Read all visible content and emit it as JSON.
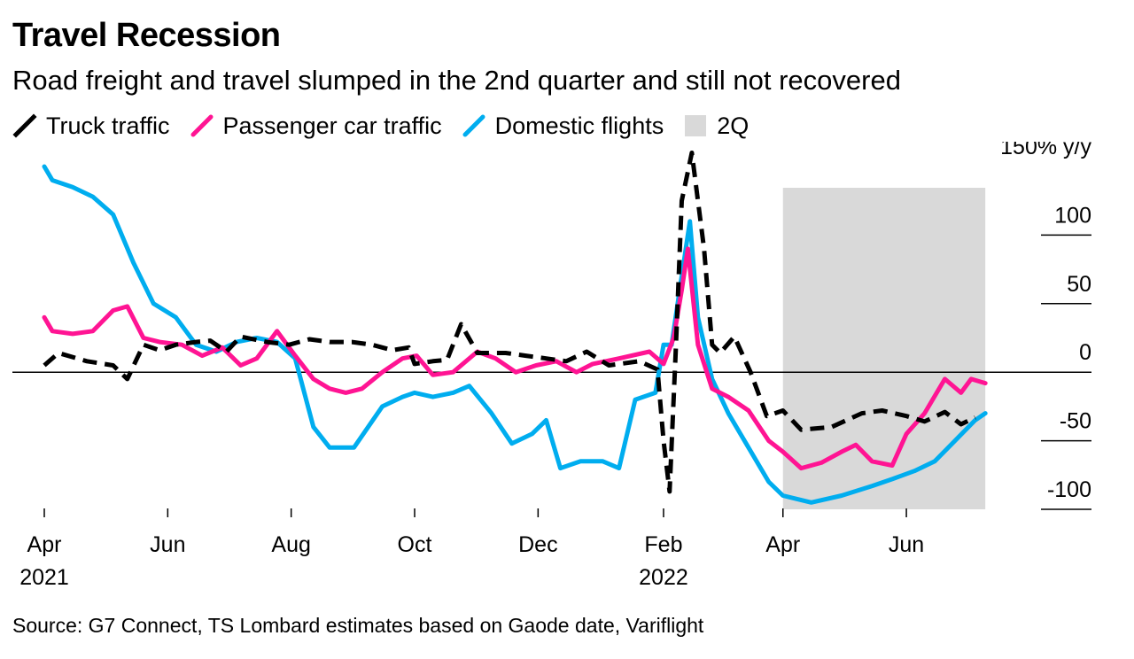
{
  "title": "Travel Recession",
  "subtitle": "Road freight and travel slumped in the 2nd quarter and still not recovered",
  "source": "Source: G7 Connect, TS Lombard estimates based on Gaode date, Variflight",
  "colors": {
    "truck": "#000000",
    "passenger": "#ff1493",
    "flights": "#00adef",
    "shade": "#d9d9d9"
  },
  "legend": [
    {
      "key": "truck",
      "label": "Truck traffic",
      "style": "dashed"
    },
    {
      "key": "passenger",
      "label": "Passenger car traffic",
      "style": "solid"
    },
    {
      "key": "flights",
      "label": "Domestic flights",
      "style": "solid"
    },
    {
      "key": "shade",
      "label": "2Q",
      "style": "box"
    }
  ],
  "chart_data": {
    "type": "line",
    "y_unit_label": "150% y/y",
    "yticks": [
      {
        "value": 150,
        "label": "150% y/y"
      },
      {
        "value": 100,
        "label": "100"
      },
      {
        "value": 50,
        "label": "50"
      },
      {
        "value": 0,
        "label": "0"
      },
      {
        "value": -50,
        "label": "-50"
      },
      {
        "value": -100,
        "label": "-100"
      }
    ],
    "ylim": [
      -100,
      150
    ],
    "xlim": [
      "2021-04-01",
      "2022-07-20"
    ],
    "xticks": [
      {
        "date": "2021-04-01",
        "label": "Apr",
        "year": "2021"
      },
      {
        "date": "2021-06-01",
        "label": "Jun",
        "year": ""
      },
      {
        "date": "2021-08-01",
        "label": "Aug",
        "year": ""
      },
      {
        "date": "2021-10-01",
        "label": "Oct",
        "year": ""
      },
      {
        "date": "2021-12-01",
        "label": "Dec",
        "year": ""
      },
      {
        "date": "2022-02-01",
        "label": "Feb",
        "year": "2022"
      },
      {
        "date": "2022-04-01",
        "label": "Apr",
        "year": ""
      },
      {
        "date": "2022-06-01",
        "label": "Jun",
        "year": ""
      }
    ],
    "shaded_region": {
      "label": "2Q",
      "start": "2022-04-01",
      "end": "2022-07-10"
    },
    "series": [
      {
        "name": "Truck traffic",
        "key": "truck",
        "style": "dashed",
        "points": [
          [
            "2021-04-01",
            5
          ],
          [
            "2021-04-08",
            14
          ],
          [
            "2021-04-22",
            8
          ],
          [
            "2021-05-05",
            5
          ],
          [
            "2021-05-12",
            -5
          ],
          [
            "2021-05-20",
            20
          ],
          [
            "2021-05-28",
            16
          ],
          [
            "2021-06-05",
            20
          ],
          [
            "2021-06-15",
            22
          ],
          [
            "2021-06-22",
            23
          ],
          [
            "2021-06-30",
            15
          ],
          [
            "2021-07-07",
            26
          ],
          [
            "2021-07-20",
            22
          ],
          [
            "2021-07-31",
            20
          ],
          [
            "2021-08-10",
            24
          ],
          [
            "2021-08-20",
            22
          ],
          [
            "2021-08-31",
            22
          ],
          [
            "2021-09-10",
            20
          ],
          [
            "2021-09-20",
            16
          ],
          [
            "2021-09-28",
            18
          ],
          [
            "2021-10-01",
            6
          ],
          [
            "2021-10-10",
            8
          ],
          [
            "2021-10-17",
            9
          ],
          [
            "2021-10-24",
            35
          ],
          [
            "2021-11-01",
            14
          ],
          [
            "2021-11-15",
            14
          ],
          [
            "2021-11-25",
            12
          ],
          [
            "2021-12-05",
            10
          ],
          [
            "2021-12-15",
            8
          ],
          [
            "2021-12-25",
            15
          ],
          [
            "2022-01-05",
            5
          ],
          [
            "2022-01-20",
            8
          ],
          [
            "2022-01-29",
            2
          ],
          [
            "2022-02-01",
            -50
          ],
          [
            "2022-02-04",
            -87
          ],
          [
            "2022-02-07",
            15
          ],
          [
            "2022-02-10",
            125
          ],
          [
            "2022-02-15",
            160
          ],
          [
            "2022-02-21",
            90
          ],
          [
            "2022-02-25",
            20
          ],
          [
            "2022-03-01",
            14
          ],
          [
            "2022-03-08",
            26
          ],
          [
            "2022-03-16",
            0
          ],
          [
            "2022-03-24",
            -32
          ],
          [
            "2022-04-01",
            -28
          ],
          [
            "2022-04-10",
            -42
          ],
          [
            "2022-04-25",
            -40
          ],
          [
            "2022-05-10",
            -30
          ],
          [
            "2022-05-20",
            -28
          ],
          [
            "2022-06-01",
            -32
          ],
          [
            "2022-06-10",
            -36
          ],
          [
            "2022-06-20",
            -29
          ],
          [
            "2022-06-28",
            -38
          ],
          [
            "2022-07-05",
            -33
          ]
        ]
      },
      {
        "name": "Passenger car traffic",
        "key": "passenger",
        "style": "solid",
        "points": [
          [
            "2021-04-01",
            40
          ],
          [
            "2021-04-05",
            30
          ],
          [
            "2021-04-15",
            28
          ],
          [
            "2021-04-25",
            30
          ],
          [
            "2021-05-05",
            45
          ],
          [
            "2021-05-12",
            48
          ],
          [
            "2021-05-20",
            25
          ],
          [
            "2021-05-28",
            22
          ],
          [
            "2021-06-08",
            20
          ],
          [
            "2021-06-18",
            12
          ],
          [
            "2021-06-28",
            18
          ],
          [
            "2021-07-07",
            5
          ],
          [
            "2021-07-15",
            10
          ],
          [
            "2021-07-25",
            30
          ],
          [
            "2021-08-03",
            12
          ],
          [
            "2021-08-12",
            -5
          ],
          [
            "2021-08-20",
            -12
          ],
          [
            "2021-08-28",
            -15
          ],
          [
            "2021-09-05",
            -12
          ],
          [
            "2021-09-15",
            0
          ],
          [
            "2021-09-25",
            10
          ],
          [
            "2021-10-02",
            12
          ],
          [
            "2021-10-10",
            -2
          ],
          [
            "2021-10-20",
            0
          ],
          [
            "2021-11-01",
            15
          ],
          [
            "2021-11-10",
            10
          ],
          [
            "2021-11-20",
            0
          ],
          [
            "2021-11-30",
            5
          ],
          [
            "2021-12-10",
            8
          ],
          [
            "2021-12-20",
            0
          ],
          [
            "2021-12-28",
            6
          ],
          [
            "2022-01-10",
            10
          ],
          [
            "2022-01-25",
            15
          ],
          [
            "2022-02-01",
            6
          ],
          [
            "2022-02-06",
            25
          ],
          [
            "2022-02-10",
            60
          ],
          [
            "2022-02-13",
            90
          ],
          [
            "2022-02-18",
            20
          ],
          [
            "2022-02-25",
            -12
          ],
          [
            "2022-03-05",
            -18
          ],
          [
            "2022-03-15",
            -28
          ],
          [
            "2022-03-25",
            -50
          ],
          [
            "2022-04-01",
            -58
          ],
          [
            "2022-04-10",
            -70
          ],
          [
            "2022-04-20",
            -66
          ],
          [
            "2022-04-30",
            -58
          ],
          [
            "2022-05-07",
            -53
          ],
          [
            "2022-05-15",
            -65
          ],
          [
            "2022-05-25",
            -68
          ],
          [
            "2022-06-01",
            -45
          ],
          [
            "2022-06-10",
            -30
          ],
          [
            "2022-06-20",
            -5
          ],
          [
            "2022-06-28",
            -15
          ],
          [
            "2022-07-03",
            -5
          ],
          [
            "2022-07-10",
            -8
          ]
        ]
      },
      {
        "name": "Domestic flights",
        "key": "flights",
        "style": "solid",
        "points": [
          [
            "2021-04-01",
            150
          ],
          [
            "2021-04-05",
            140
          ],
          [
            "2021-04-15",
            135
          ],
          [
            "2021-04-25",
            128
          ],
          [
            "2021-05-05",
            115
          ],
          [
            "2021-05-15",
            80
          ],
          [
            "2021-05-25",
            50
          ],
          [
            "2021-06-05",
            40
          ],
          [
            "2021-06-15",
            20
          ],
          [
            "2021-06-25",
            15
          ],
          [
            "2021-07-05",
            22
          ],
          [
            "2021-07-15",
            25
          ],
          [
            "2021-07-25",
            22
          ],
          [
            "2021-08-03",
            10
          ],
          [
            "2021-08-12",
            -40
          ],
          [
            "2021-08-20",
            -55
          ],
          [
            "2021-09-01",
            -55
          ],
          [
            "2021-09-15",
            -25
          ],
          [
            "2021-09-25",
            -18
          ],
          [
            "2021-10-01",
            -15
          ],
          [
            "2021-10-10",
            -18
          ],
          [
            "2021-10-20",
            -15
          ],
          [
            "2021-10-28",
            -10
          ],
          [
            "2021-11-08",
            -30
          ],
          [
            "2021-11-18",
            -52
          ],
          [
            "2021-11-28",
            -45
          ],
          [
            "2021-12-05",
            -35
          ],
          [
            "2021-12-12",
            -70
          ],
          [
            "2021-12-22",
            -65
          ],
          [
            "2022-01-02",
            -65
          ],
          [
            "2022-01-10",
            -70
          ],
          [
            "2022-01-18",
            -20
          ],
          [
            "2022-01-28",
            -15
          ],
          [
            "2022-02-01",
            20
          ],
          [
            "2022-02-05",
            20
          ],
          [
            "2022-02-09",
            60
          ],
          [
            "2022-02-14",
            110
          ],
          [
            "2022-02-18",
            40
          ],
          [
            "2022-02-25",
            -5
          ],
          [
            "2022-03-05",
            -30
          ],
          [
            "2022-03-15",
            -55
          ],
          [
            "2022-03-25",
            -80
          ],
          [
            "2022-04-01",
            -90
          ],
          [
            "2022-04-15",
            -95
          ],
          [
            "2022-04-30",
            -90
          ],
          [
            "2022-05-15",
            -83
          ],
          [
            "2022-05-25",
            -78
          ],
          [
            "2022-06-05",
            -72
          ],
          [
            "2022-06-15",
            -65
          ],
          [
            "2022-06-25",
            -50
          ],
          [
            "2022-07-05",
            -35
          ],
          [
            "2022-07-10",
            -30
          ]
        ]
      }
    ]
  }
}
